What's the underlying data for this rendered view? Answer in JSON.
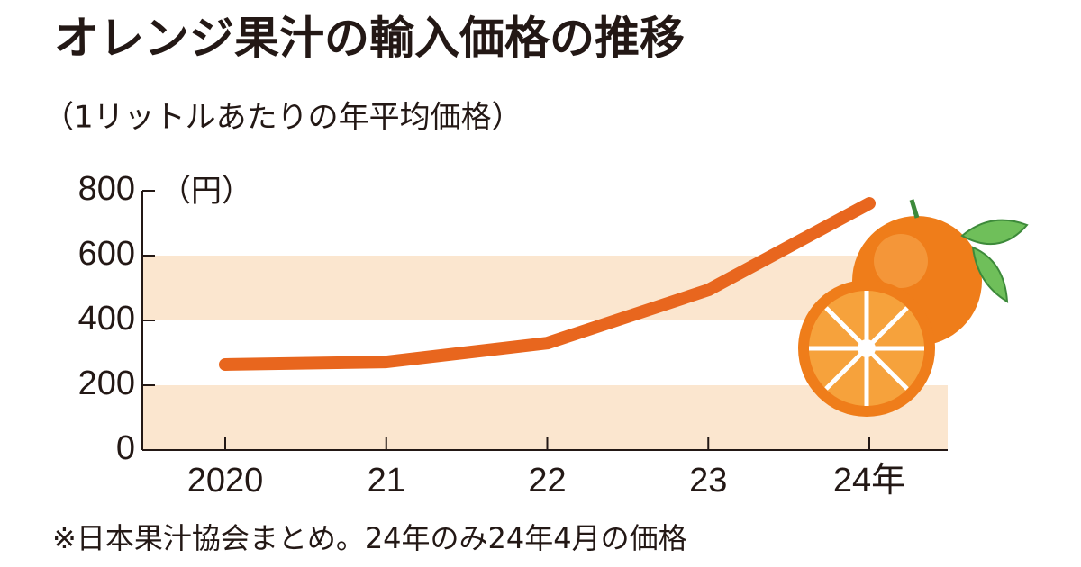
{
  "chart_data": {
    "type": "line",
    "title": "オレンジ果汁の輸入価格の推移",
    "subtitle": "（1リットルあたりの年平均価格）",
    "y_unit": "（円）",
    "categories": [
      "2020",
      "21",
      "22",
      "23",
      "24年"
    ],
    "values": [
      264,
      272,
      330,
      494,
      761
    ],
    "color": "#e8661e",
    "band_color": "#fbe6cf",
    "ylim": [
      0,
      800
    ],
    "yticks": [
      0,
      200,
      400,
      600,
      800
    ],
    "footnote": "※日本果汁協会まとめ。24年のみ24年4月の価格"
  }
}
